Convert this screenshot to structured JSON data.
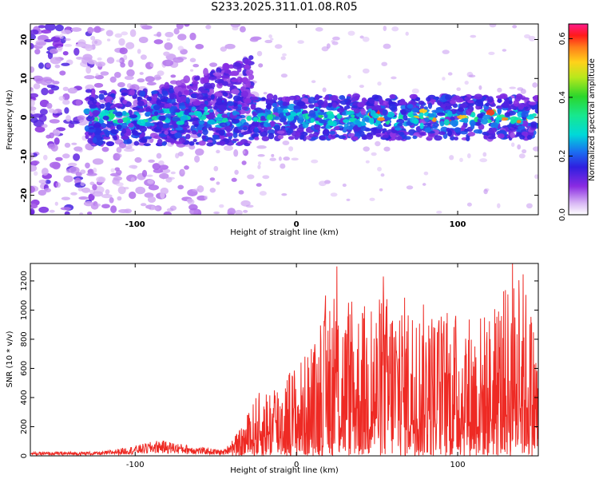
{
  "title": "S233.2025.311.01.08.R05",
  "chart_data": [
    {
      "type": "heatmap",
      "xlabel": "Height of straight line (km)",
      "ylabel": "Frequency (Hz)",
      "xlim": [
        -165,
        150
      ],
      "ylim": [
        -25,
        24
      ],
      "xticks": [
        -100,
        0,
        100
      ],
      "yticks": [
        -20,
        -10,
        0,
        10,
        20
      ],
      "colorbar": {
        "label": "Normalized spectral amplitude",
        "range": [
          0.0,
          0.65
        ],
        "ticks": [
          0.0,
          0.2,
          0.4,
          0.6
        ]
      },
      "pattern": {
        "band_center_hz": 0,
        "band_halfwidth_hz": 4,
        "band_onset_km": -130,
        "band_strong_from_km": -30,
        "broad_noise_until_km": -60
      }
    },
    {
      "type": "line",
      "xlabel": "Height of straight line (km)",
      "ylabel": "SNR (10 * v/v)",
      "xlim": [
        -165,
        150
      ],
      "ylim": [
        0,
        1320
      ],
      "xticks": [
        -100,
        0,
        100
      ],
      "yticks": [
        0,
        200,
        400,
        600,
        800,
        1000,
        1200
      ],
      "color": "#ee2a24",
      "envelope_points": [
        {
          "x": -165,
          "y": 25
        },
        {
          "x": -120,
          "y": 30
        },
        {
          "x": -100,
          "y": 70
        },
        {
          "x": -85,
          "y": 110
        },
        {
          "x": -60,
          "y": 60
        },
        {
          "x": -45,
          "y": 40
        },
        {
          "x": -35,
          "y": 180
        },
        {
          "x": -25,
          "y": 420
        },
        {
          "x": -10,
          "y": 560
        },
        {
          "x": 0,
          "y": 650
        },
        {
          "x": 10,
          "y": 750
        },
        {
          "x": 20,
          "y": 1100
        },
        {
          "x": 40,
          "y": 1050
        },
        {
          "x": 60,
          "y": 1150
        },
        {
          "x": 80,
          "y": 1050
        },
        {
          "x": 100,
          "y": 1000
        },
        {
          "x": 120,
          "y": 1000
        },
        {
          "x": 140,
          "y": 1320
        },
        {
          "x": 150,
          "y": 800
        }
      ],
      "peaks": [
        {
          "x": 25,
          "y": 1300
        },
        {
          "x": 54,
          "y": 1230
        },
        {
          "x": 134,
          "y": 1320
        },
        {
          "x": 18,
          "y": 1100
        }
      ]
    }
  ]
}
